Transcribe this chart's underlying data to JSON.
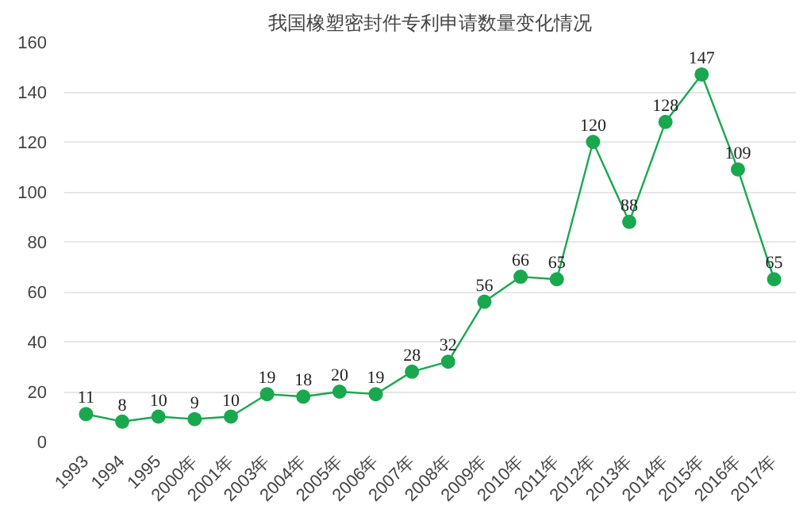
{
  "chart_data": {
    "type": "line",
    "title": "我国橡塑密封件专利申请数量变化情况",
    "categories": [
      "1993",
      "1994",
      "1995",
      "2000年",
      "2001年",
      "2003年",
      "2004年",
      "2005年",
      "2006年",
      "2007年",
      "2008年",
      "2009年",
      "2010年",
      "2011年",
      "2012年",
      "2013年",
      "2014年",
      "2015年",
      "2016年",
      "2017年"
    ],
    "series": [
      {
        "color": "#1aa84f",
        "values": [
          11,
          8,
          10,
          9,
          10,
          19,
          18,
          20,
          19,
          28,
          32,
          56,
          66,
          65,
          120,
          88,
          128,
          147,
          109,
          65
        ]
      }
    ],
    "ylim": [
      0,
      160
    ],
    "yticks": [
      0,
      20,
      40,
      60,
      80,
      100,
      120,
      140,
      160
    ],
    "grid": "y",
    "marker": "circle",
    "data_labels": true
  }
}
